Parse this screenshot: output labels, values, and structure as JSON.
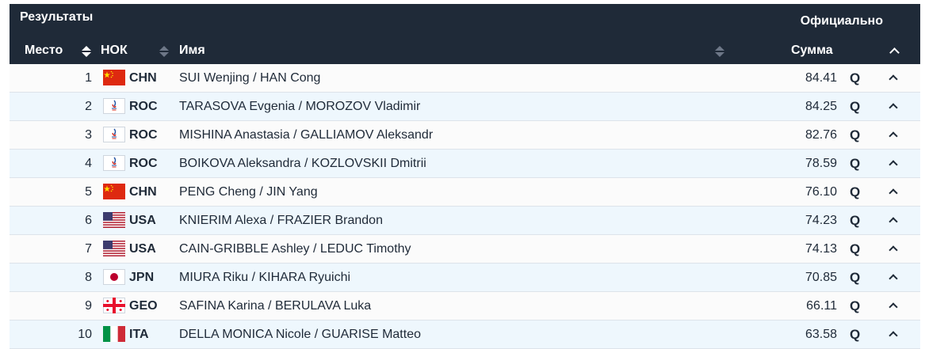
{
  "header": {
    "title": "Результаты",
    "status": "Официально",
    "columns": {
      "rank": "Место",
      "noc": "НОК",
      "name": "Имя",
      "total": "Сумма"
    }
  },
  "rows": [
    {
      "rank": "1",
      "noc": "CHN",
      "flag": "china-flag-icon",
      "name": "SUI Wenjing / HAN Cong",
      "score": "84.41",
      "q": "Q"
    },
    {
      "rank": "2",
      "noc": "ROC",
      "flag": "roc-flag-icon",
      "name": "TARASOVA Evgenia / MOROZOV Vladimir",
      "score": "84.25",
      "q": "Q"
    },
    {
      "rank": "3",
      "noc": "ROC",
      "flag": "roc-flag-icon",
      "name": "MISHINA Anastasia / GALLIAMOV Aleksandr",
      "score": "82.76",
      "q": "Q"
    },
    {
      "rank": "4",
      "noc": "ROC",
      "flag": "roc-flag-icon",
      "name": "BOIKOVA Aleksandra / KOZLOVSKII Dmitrii",
      "score": "78.59",
      "q": "Q"
    },
    {
      "rank": "5",
      "noc": "CHN",
      "flag": "china-flag-icon",
      "name": "PENG Cheng / JIN Yang",
      "score": "76.10",
      "q": "Q"
    },
    {
      "rank": "6",
      "noc": "USA",
      "flag": "usa-flag-icon",
      "name": "KNIERIM Alexa / FRAZIER Brandon",
      "score": "74.23",
      "q": "Q"
    },
    {
      "rank": "7",
      "noc": "USA",
      "flag": "usa-flag-icon",
      "name": "CAIN-GRIBBLE Ashley / LEDUC Timothy",
      "score": "74.13",
      "q": "Q"
    },
    {
      "rank": "8",
      "noc": "JPN",
      "flag": "japan-flag-icon",
      "name": "MIURA Riku / KIHARA Ryuichi",
      "score": "70.85",
      "q": "Q"
    },
    {
      "rank": "9",
      "noc": "GEO",
      "flag": "georgia-flag-icon",
      "name": "SAFINA Karina / BERULAVA Luka",
      "score": "66.11",
      "q": "Q"
    },
    {
      "rank": "10",
      "noc": "ITA",
      "flag": "italy-flag-icon",
      "name": "DELLA MONICA Nicole / GUARISE Matteo",
      "score": "63.58",
      "q": "Q"
    }
  ],
  "colors": {
    "header_bg": "#1f2a38",
    "row_alt_bg": "#eef7fd",
    "text": "#1f2a38"
  }
}
